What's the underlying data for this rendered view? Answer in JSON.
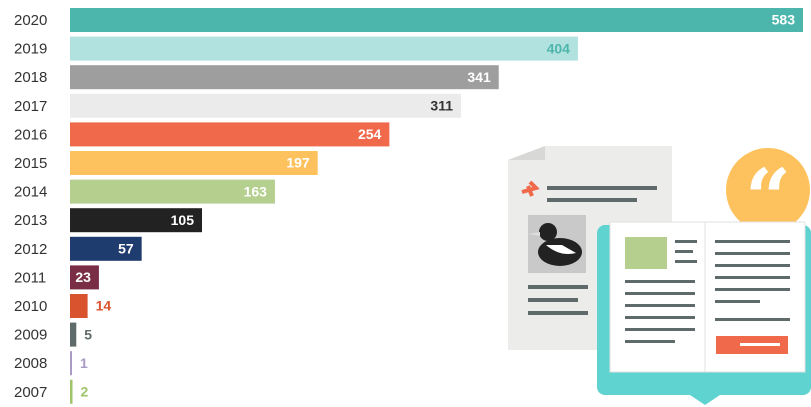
{
  "chart_data": {
    "type": "bar",
    "orientation": "horizontal",
    "categories": [
      "2020",
      "2019",
      "2018",
      "2017",
      "2016",
      "2015",
      "2014",
      "2013",
      "2012",
      "2011",
      "2010",
      "2009",
      "2008",
      "2007"
    ],
    "values": [
      583,
      404,
      341,
      311,
      254,
      197,
      163,
      105,
      57,
      23,
      14,
      5,
      1,
      2
    ],
    "colors": [
      "#4db6ac",
      "#b2e2e0",
      "#9e9e9e",
      "#ebebeb",
      "#f0694b",
      "#fdc25e",
      "#b5cf8f",
      "#222222",
      "#1f3c6e",
      "#7a2e45",
      "#d9542e",
      "#5f6b6a",
      "#a89bc4",
      "#9fc46a"
    ],
    "label_colors": [
      "#ffffff",
      "#4db6ac",
      "#ffffff",
      "#333333",
      "#ffffff",
      "#ffffff",
      "#ffffff",
      "#ffffff",
      "#ffffff",
      "#ffffff",
      "#d9542e",
      "#5f6b6a",
      "#a89bc4",
      "#9fc46a"
    ]
  }
}
